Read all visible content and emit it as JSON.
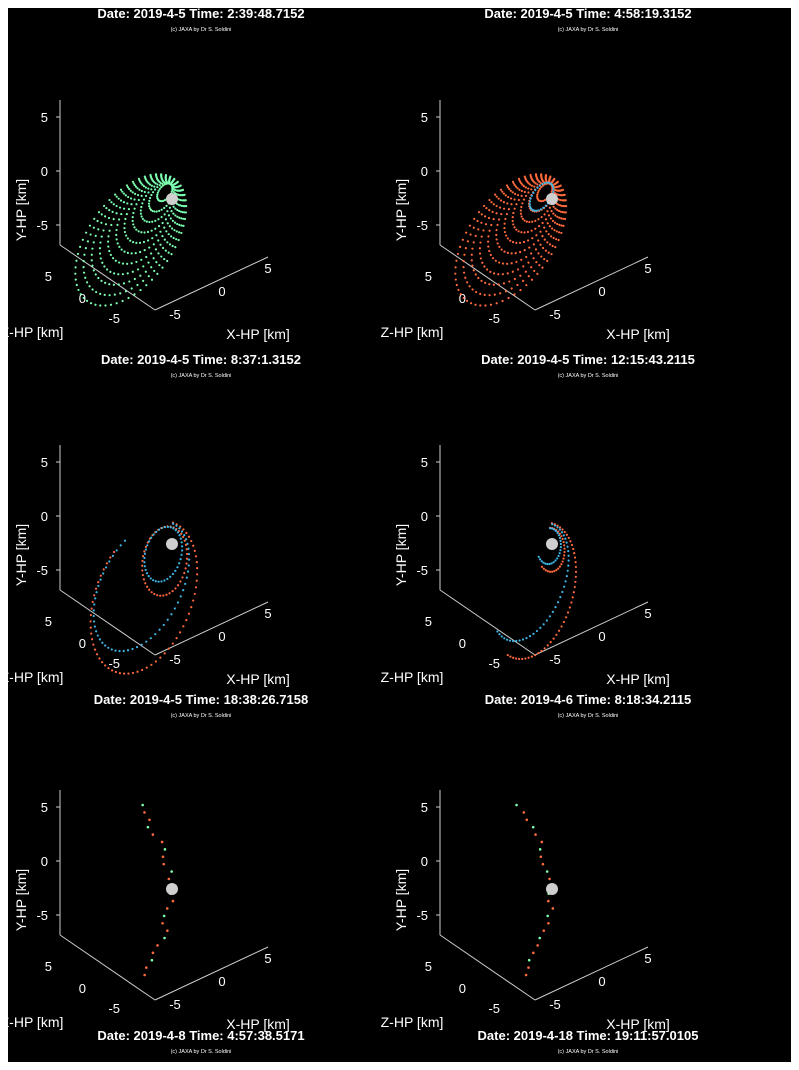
{
  "credit": "(c) JAXA by Dr S. Soldini",
  "axes": {
    "y_label": "Y-HP [km]",
    "z_label": "Z-HP [km]",
    "x_label": "X-HP [km]",
    "y_ticks": [
      "5",
      "0",
      "-5"
    ],
    "z_ticks": [
      "5",
      "0",
      "-5"
    ],
    "x_ticks": [
      "-5",
      "0",
      "5"
    ]
  },
  "colors": {
    "background": "#000000",
    "green": "#7dffb0",
    "orange": "#ff6a3d",
    "blue": "#3fb6e8",
    "asteroid": "#cfcfcf"
  },
  "panels": [
    {
      "date_time": "Date: 2019-4-5 Time: 2:39:48.7152",
      "style": "green-dense-rings"
    },
    {
      "date_time": "Date: 2019-4-5 Time: 4:58:19.3152",
      "style": "orange-dense-rings"
    },
    {
      "date_time": "Date: 2019-4-5 Time: 8:37:1.3152",
      "style": "orange-blue-loops"
    },
    {
      "date_time": "Date: 2019-4-5 Time: 12:15:43.2115",
      "style": "orange-blue-arcs"
    },
    {
      "date_time": "Date: 2019-4-5 Time: 18:38:26.7158",
      "style": "sparse-chain"
    },
    {
      "date_time": "Date: 2019-4-6 Time: 8:18:34.2115",
      "style": "sparse-chain"
    }
  ],
  "bottom_titles": [
    "Date: 2019-4-8 Time: 4:57:38.5171",
    "Date: 2019-4-18 Time: 19:11:57.0105"
  ]
}
